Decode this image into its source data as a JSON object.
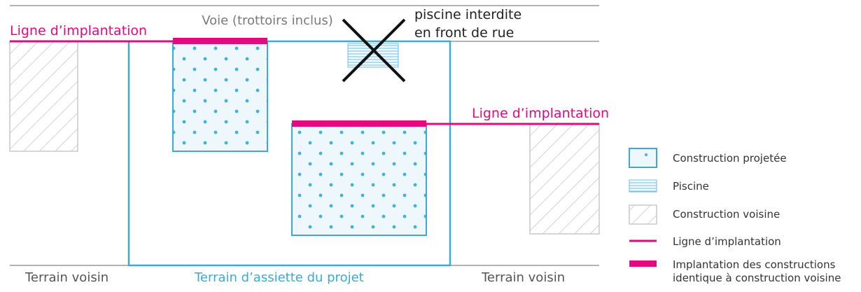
{
  "colors": {
    "pink": "#e5097f",
    "blue": "#3aaad6",
    "grey_line": "#888888",
    "hatch": "#c8c8c8",
    "dot": "#3fb4d8",
    "dark_text": "#2b2b2b",
    "light_text": "#7a7a7a"
  },
  "diagram": {
    "road_label": "Voie (trottoirs inclus)",
    "pool_forbidden_line1": "piscine interdite",
    "pool_forbidden_line2": "en front de rue",
    "implantation_line_label_left": "Ligne d’implantation",
    "implantation_line_label_right": "Ligne d’implantation",
    "neighbor_land_left": "Terrain voisin",
    "neighbor_land_right": "Terrain voisin",
    "project_land": "Terrain d’assiette du projet"
  },
  "legend": {
    "items": [
      {
        "icon": "construction-projected-swatch",
        "label": "Construction projetée"
      },
      {
        "icon": "pool-swatch",
        "label": "Piscine"
      },
      {
        "icon": "neighbor-construction-swatch",
        "label": "Construction voisine"
      },
      {
        "icon": "implantation-line-swatch",
        "label": "Ligne d’implantation"
      },
      {
        "icon": "identical-implantation-swatch",
        "label_line1": "Implantation des constructions",
        "label_line2": "identique à construction voisine"
      }
    ]
  }
}
